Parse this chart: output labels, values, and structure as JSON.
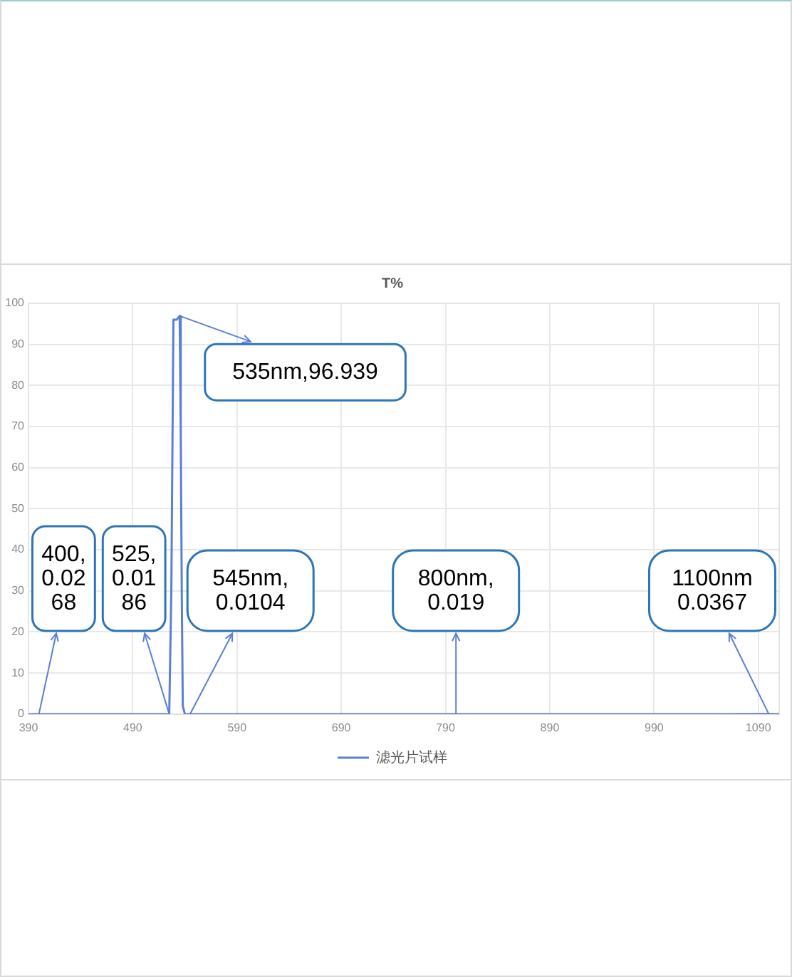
{
  "chart_data": {
    "type": "line",
    "title": "T%",
    "x": [
      390,
      400,
      450,
      500,
      520,
      525,
      527,
      529,
      532,
      535,
      536,
      537,
      538,
      540,
      545,
      600,
      700,
      800,
      900,
      1000,
      1100,
      1110
    ],
    "series": [
      {
        "name": "滤光片试样",
        "color": "#5a7fd6",
        "values": [
          0,
          0.0268,
          0,
          0,
          0,
          0.0186,
          30,
          96,
          96,
          96.939,
          70,
          30,
          2,
          0,
          0.0104,
          0,
          0,
          0.019,
          0,
          0,
          0.0367,
          0
        ]
      }
    ],
    "xlim": [
      390,
      1110
    ],
    "xticks": [
      390,
      490,
      590,
      690,
      790,
      890,
      990,
      1090
    ],
    "ylim": [
      0,
      100
    ],
    "yticks": [
      0,
      10,
      20,
      30,
      40,
      50,
      60,
      70,
      80,
      90,
      100
    ],
    "grid": true,
    "legend": "bottom",
    "marker": "none",
    "line_style": "solid",
    "annotations": [
      {
        "text": "400, 0.0268",
        "x": 400,
        "y": 0.0268
      },
      {
        "text": "525, 0.0186",
        "x": 525,
        "y": 0.0186
      },
      {
        "text": "535nm,96.939",
        "x": 535,
        "y": 96.939
      },
      {
        "text": "545nm, 0.0104",
        "x": 545,
        "y": 0.0104
      },
      {
        "text": "800nm, 0.019",
        "x": 800,
        "y": 0.019
      },
      {
        "text": "1100nm 0.0367",
        "x": 1100,
        "y": 0.0367
      }
    ]
  }
}
